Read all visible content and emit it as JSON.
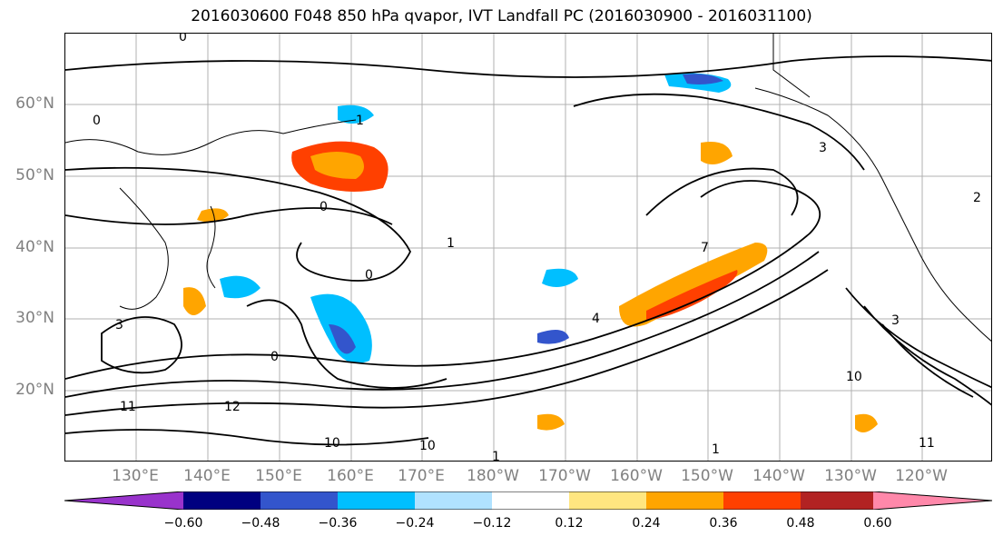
{
  "title": "2016030600 F048 850 hPa qvapor, IVT Landfall PC (2016030900 - 2016031100)",
  "lat_labels": [
    "60°N",
    "50°N",
    "40°N",
    "30°N",
    "20°N"
  ],
  "lon_labels": [
    "130°E",
    "140°E",
    "150°E",
    "160°E",
    "170°E",
    "180°W",
    "170°W",
    "160°W",
    "150°W",
    "140°W",
    "130°W",
    "120°W"
  ],
  "contour_labels": [
    "0",
    "0",
    "1",
    "0",
    "3",
    "3",
    "1",
    "0",
    "12",
    "10",
    "10",
    "11",
    "0",
    "1",
    "7",
    "4",
    "3",
    "2",
    "10",
    "11",
    "1"
  ],
  "colorbar": {
    "ticks": [
      "−0.60",
      "−0.48",
      "−0.36",
      "−0.24",
      "−0.12",
      "0.12",
      "0.24",
      "0.36",
      "0.48",
      "0.60"
    ],
    "colors": [
      "#9933cc",
      "#000080",
      "#3355cc",
      "#00bfff",
      "#b0e2ff",
      "#ffffff",
      "#ffe680",
      "#ffa500",
      "#ff4000",
      "#b22222",
      "#ff88aa"
    ]
  },
  "colors": {
    "grid": "#b0b0b0",
    "axis_label": "#808080",
    "contour": "#000000"
  }
}
